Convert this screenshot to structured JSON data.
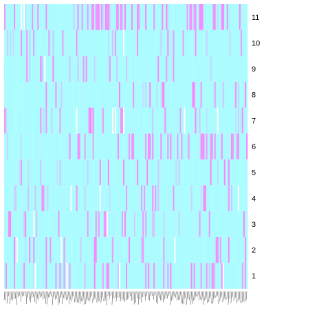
{
  "chart_data": {
    "type": "heatmap",
    "title": "",
    "xlabel": "",
    "ylabel": "",
    "rows": [
      "1",
      "2",
      "3",
      "4",
      "5",
      "6",
      "7",
      "8",
      "9",
      "10",
      "11"
    ],
    "colors": {
      "low": "#aaffff",
      "high": "#ff80ff",
      "missing": "#ffffff",
      "background": "#ffffff"
    },
    "value_range": [
      0,
      1
    ],
    "grid": false,
    "legend": "none",
    "column_labels_legible": false,
    "n_columns": 176,
    "seed": 20240611,
    "row_high_fraction": [
      0.1,
      0.09,
      0.15,
      0.1,
      0.08,
      0.14,
      0.13,
      0.05,
      0.08,
      0.09,
      0.27
    ]
  }
}
